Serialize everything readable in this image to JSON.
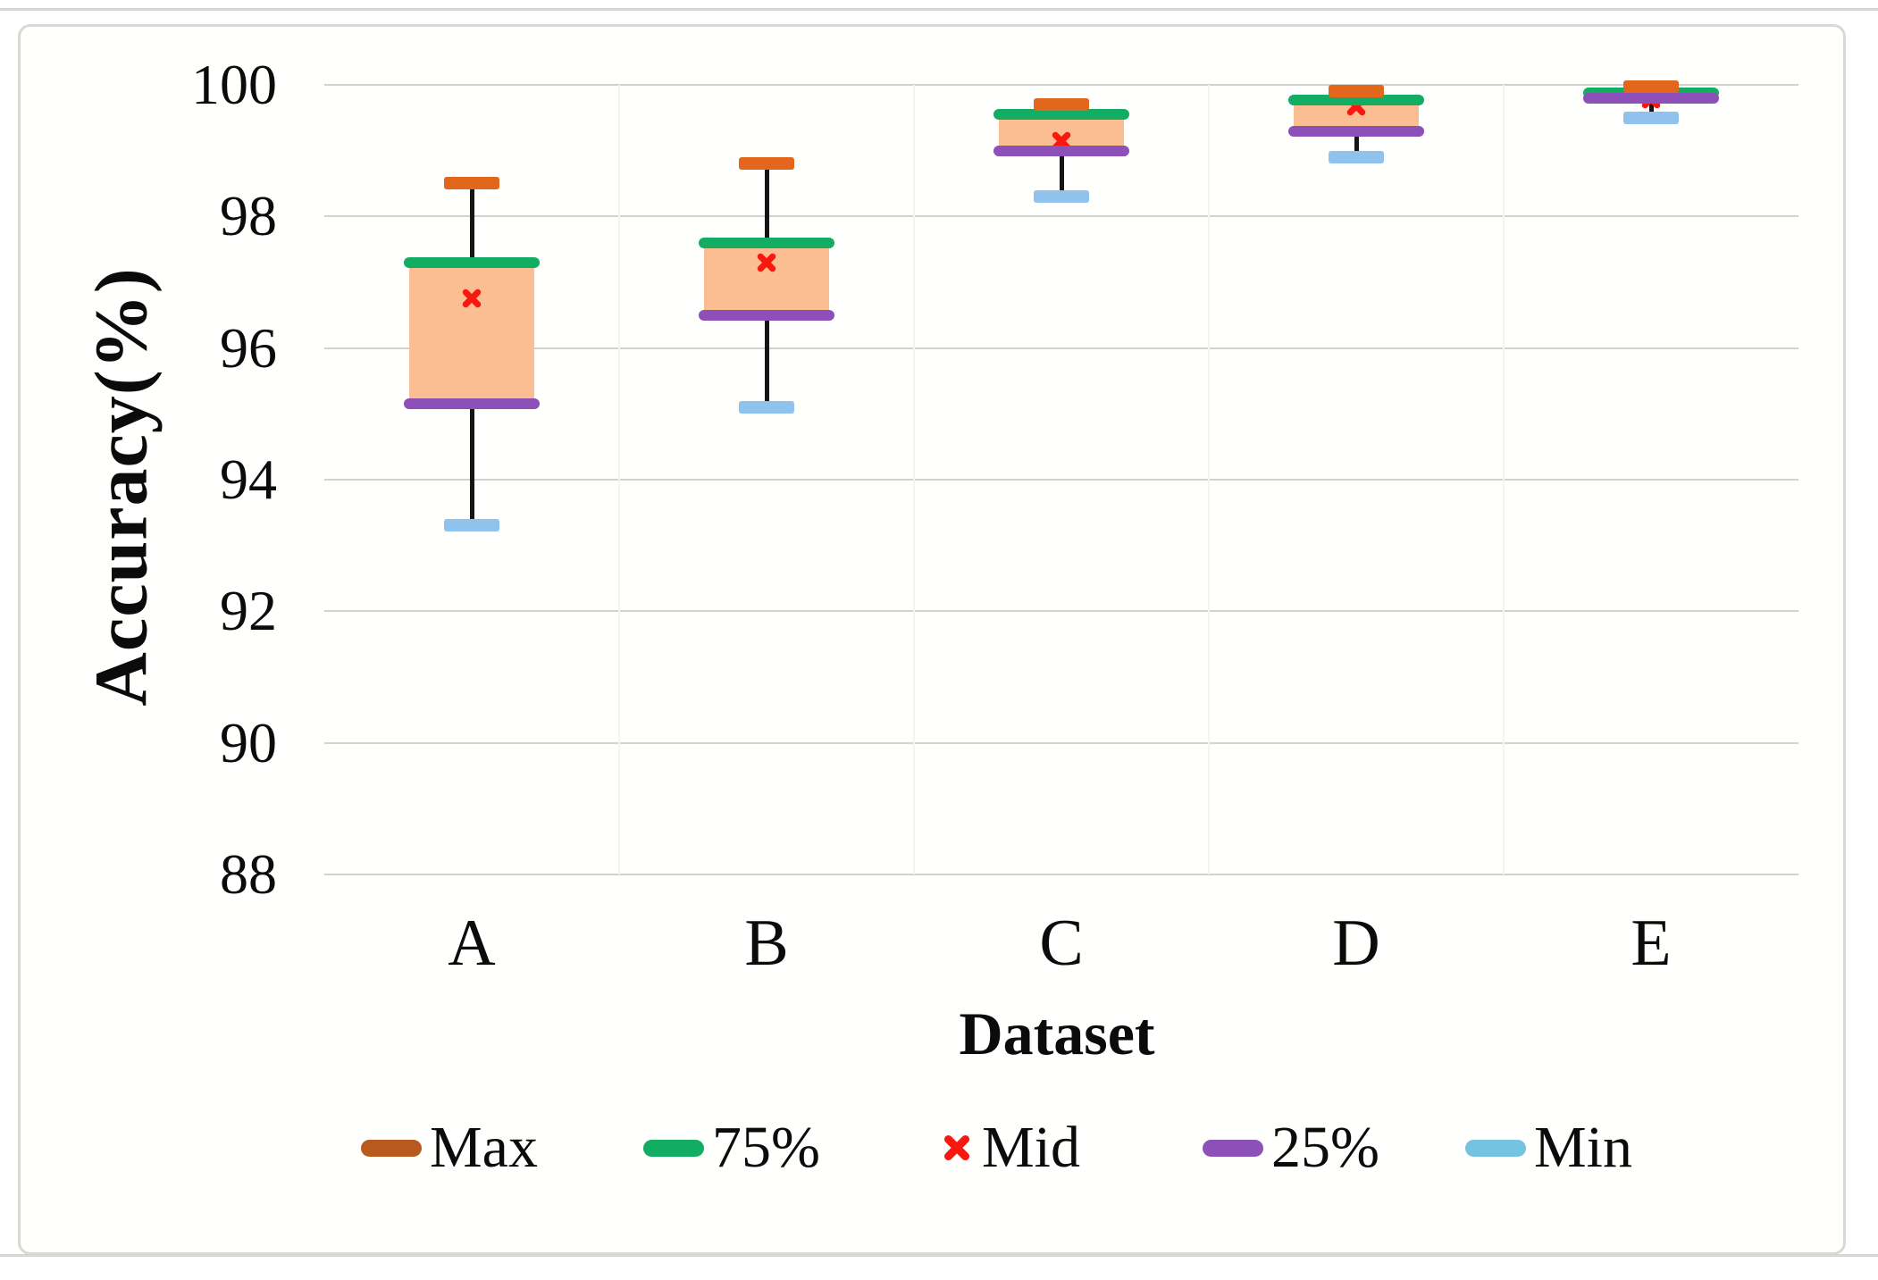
{
  "chart_data": {
    "type": "box",
    "title": "",
    "xlabel": "Dataset",
    "ylabel": "Accuracy(%)",
    "categories": [
      "A",
      "B",
      "C",
      "D",
      "E"
    ],
    "yticks": [
      100,
      98,
      96,
      94,
      92,
      90,
      88
    ],
    "ylim": [
      87.5,
      100.9
    ],
    "grid": "horizontal-major",
    "legend_position": "bottom",
    "boxes": [
      {
        "category": "A",
        "max": 98.5,
        "q3": 97.3,
        "mid": 96.75,
        "q1": 95.15,
        "min": 93.3
      },
      {
        "category": "B",
        "max": 98.8,
        "q3": 97.6,
        "mid": 97.3,
        "q1": 96.5,
        "min": 95.1
      },
      {
        "category": "C",
        "max": 99.7,
        "q3": 99.55,
        "mid": 99.15,
        "q1": 99.0,
        "min": 98.3
      },
      {
        "category": "D",
        "max": 99.9,
        "q3": 99.77,
        "mid": 99.68,
        "q1": 99.3,
        "min": 98.9
      },
      {
        "category": "E",
        "max": 99.97,
        "q3": 99.88,
        "mid": 99.78,
        "q1": 99.8,
        "min": 99.5
      }
    ],
    "legend": [
      {
        "label": "Max",
        "marker": "bar",
        "color": "#b85a1e"
      },
      {
        "label": "75%",
        "marker": "bar",
        "color": "#12ac62"
      },
      {
        "label": "Mid",
        "marker": "x",
        "color": "#f9180f"
      },
      {
        "label": "25%",
        "marker": "bar",
        "color": "#8c50b8"
      },
      {
        "label": "Min",
        "marker": "bar",
        "color": "#74c3e1"
      }
    ],
    "colors": {
      "max_cap": "#e2661c",
      "q3_line": "#12ac62",
      "mid_marker": "#f9180f",
      "q1_line": "#8c50b8",
      "min_cap": "#8fc3ee",
      "box_fill": "#fbbe93",
      "whisker": "#151515",
      "gridline": "#d2d2d0"
    }
  }
}
